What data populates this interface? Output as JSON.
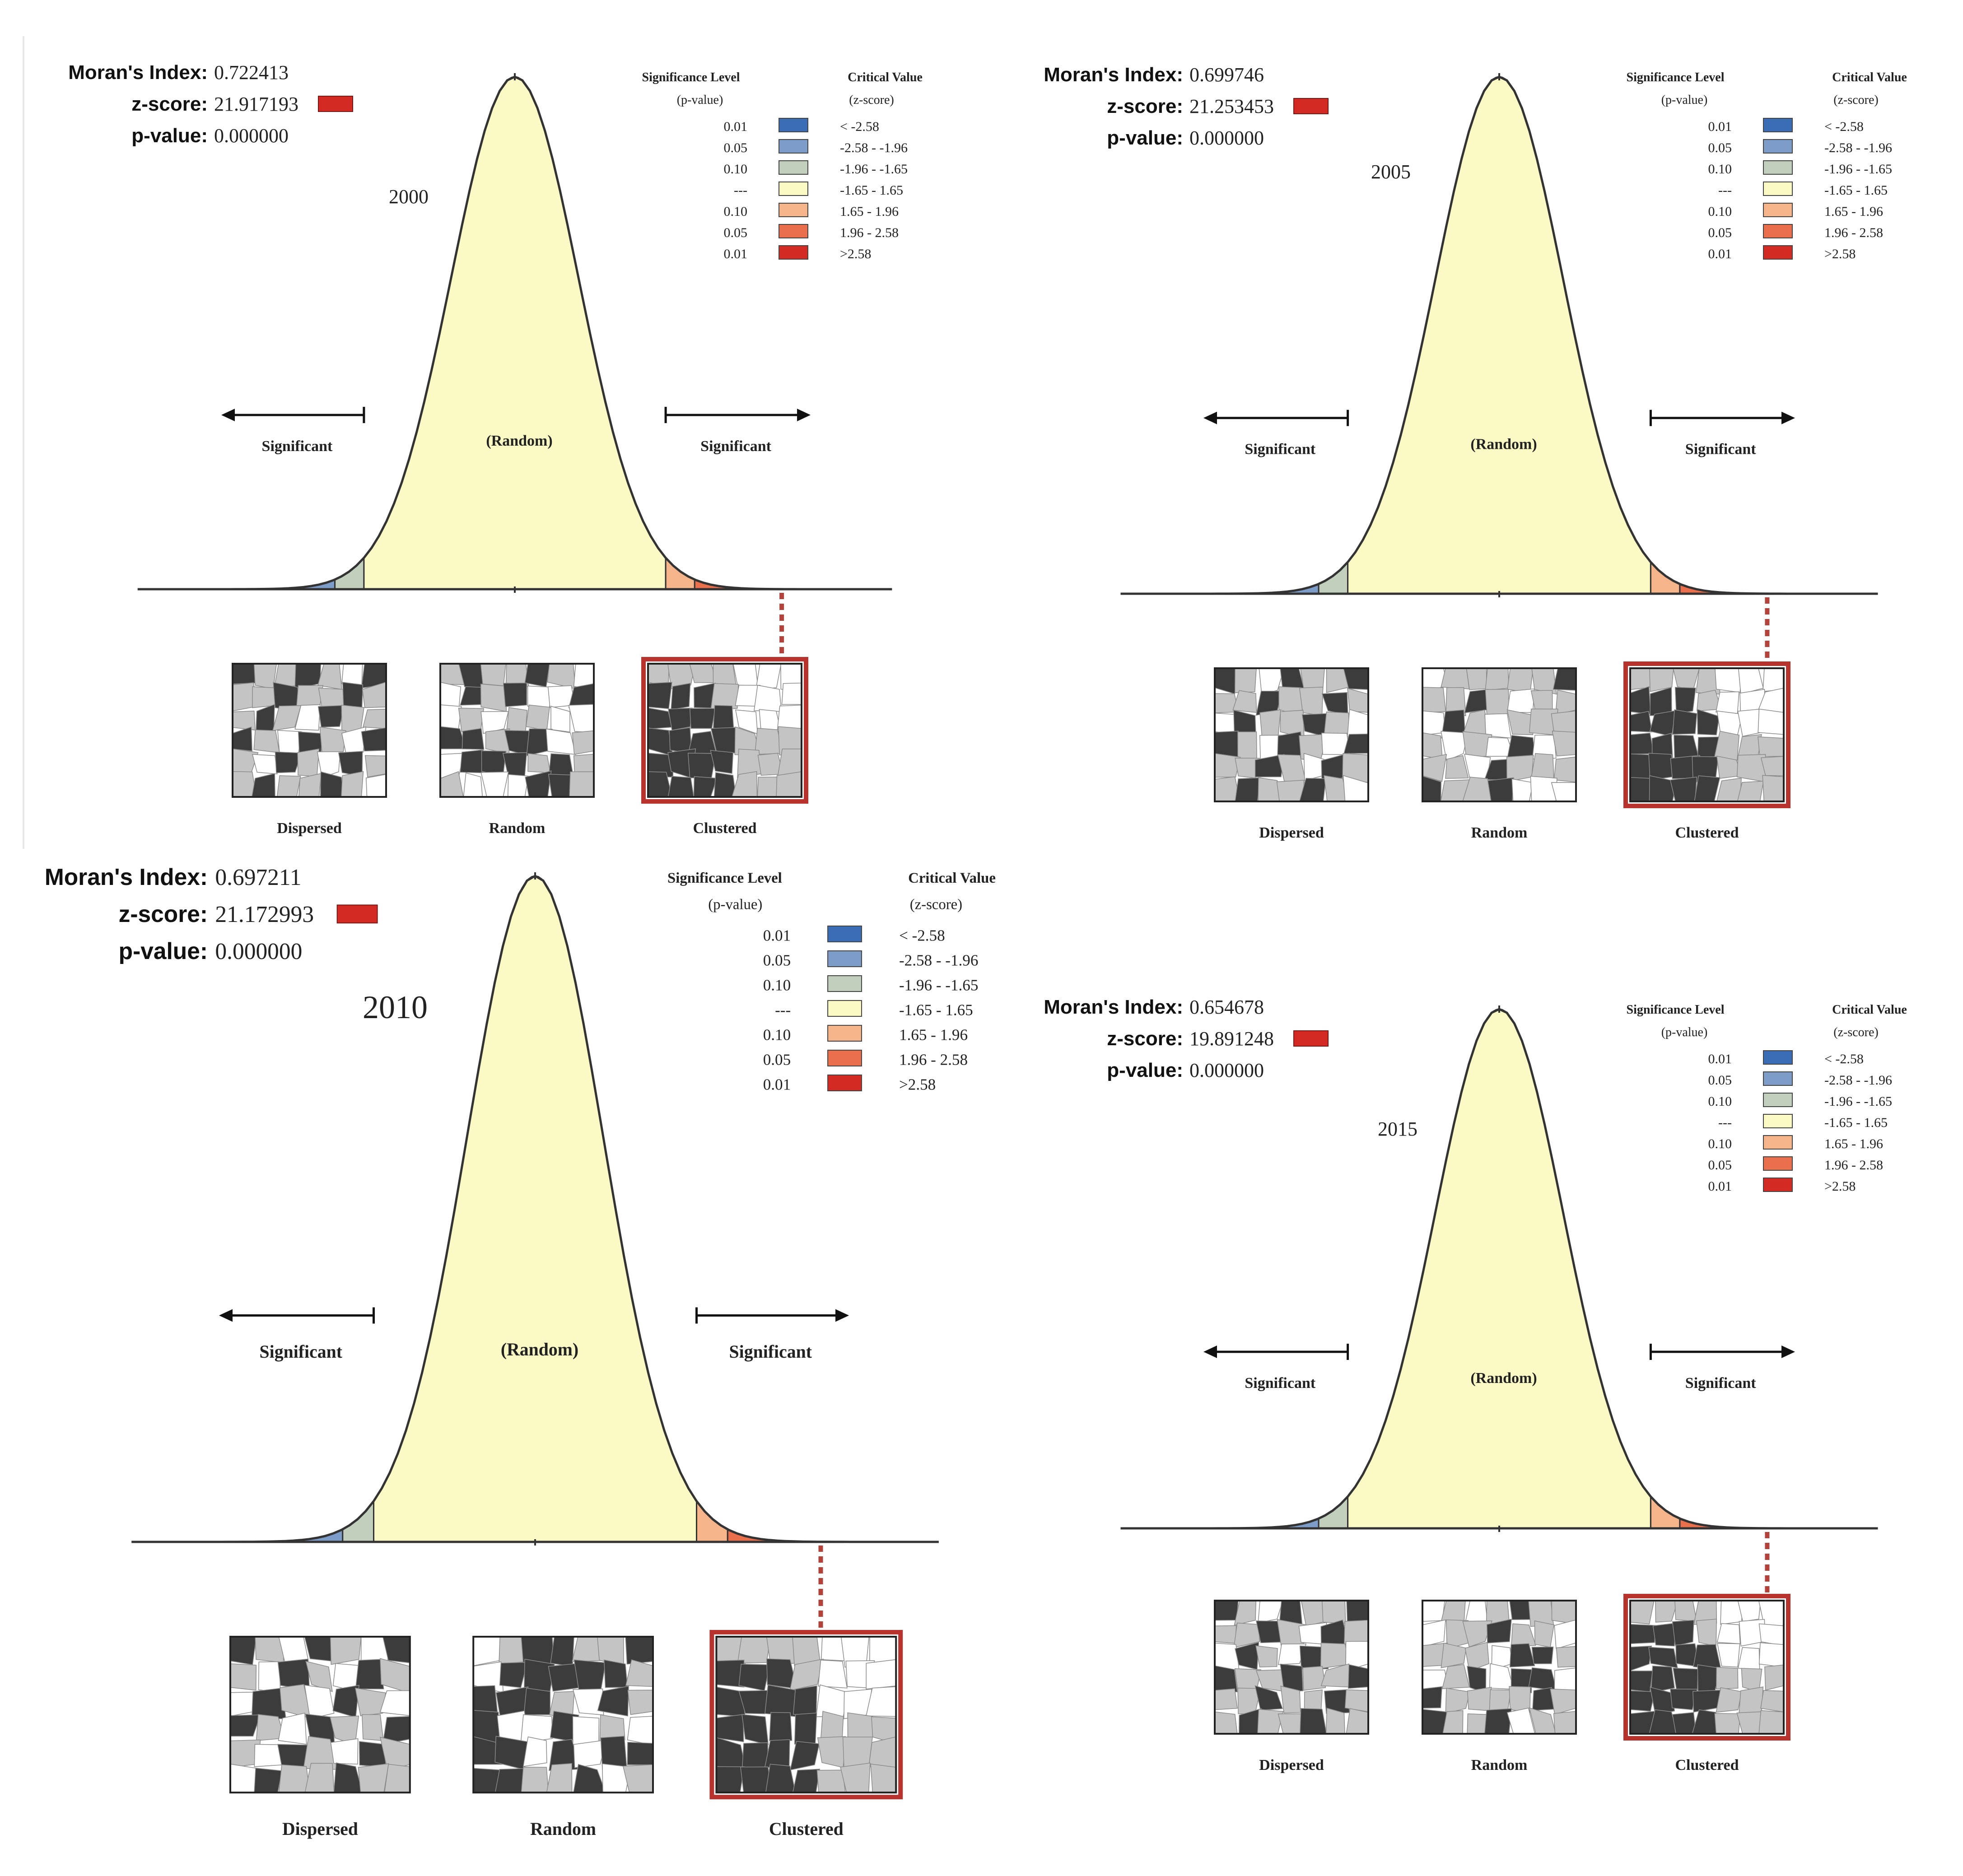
{
  "labels": {
    "morans_index": "Moran's Index:",
    "z_score": "z-score:",
    "p_value": "p-value:",
    "significance_level": "Significance Level",
    "p_value_paren": "(p-value)",
    "critical_value": "Critical Value",
    "z_score_paren": "(z-score)",
    "random_center": "(Random)",
    "significant": "Significant",
    "dispersed": "Dispersed",
    "random": "Random",
    "clustered": "Clustered"
  },
  "legend": [
    {
      "p": "0.01",
      "z": "< -2.58",
      "color": "#3a6db5"
    },
    {
      "p": "0.05",
      "z": "-2.58 - -1.96",
      "color": "#7e9cc8"
    },
    {
      "p": "0.10",
      "z": "-1.96 - -1.65",
      "color": "#c3cfbd"
    },
    {
      "p": "---",
      "z": "-1.65 - 1.65",
      "color": "#fbfac4"
    },
    {
      "p": "0.10",
      "z": "1.65 - 1.96",
      "color": "#f5b48a"
    },
    {
      "p": "0.05",
      "z": "1.96 - 2.58",
      "color": "#ea6f4c"
    },
    {
      "p": "0.01",
      "z": ">2.58",
      "color": "#d42a24"
    }
  ],
  "panels": [
    {
      "year": "2000",
      "morans_index": "0.722413",
      "z_score": "21.917193",
      "p_value": "0.000000"
    },
    {
      "year": "2005",
      "morans_index": "0.699746",
      "z_score": "21.253453",
      "p_value": "0.000000"
    },
    {
      "year": "2010",
      "morans_index": "0.697211",
      "z_score": "21.172993",
      "p_value": "0.000000"
    },
    {
      "year": "2015",
      "morans_index": "0.654678",
      "z_score": "19.891248",
      "p_value": "0.000000"
    }
  ],
  "colors": {
    "curve_fill": "#fbfac4",
    "highlight_red": "#d42a24",
    "map_dark": "#3c3c3c",
    "map_gray": "#c4c4c4"
  }
}
